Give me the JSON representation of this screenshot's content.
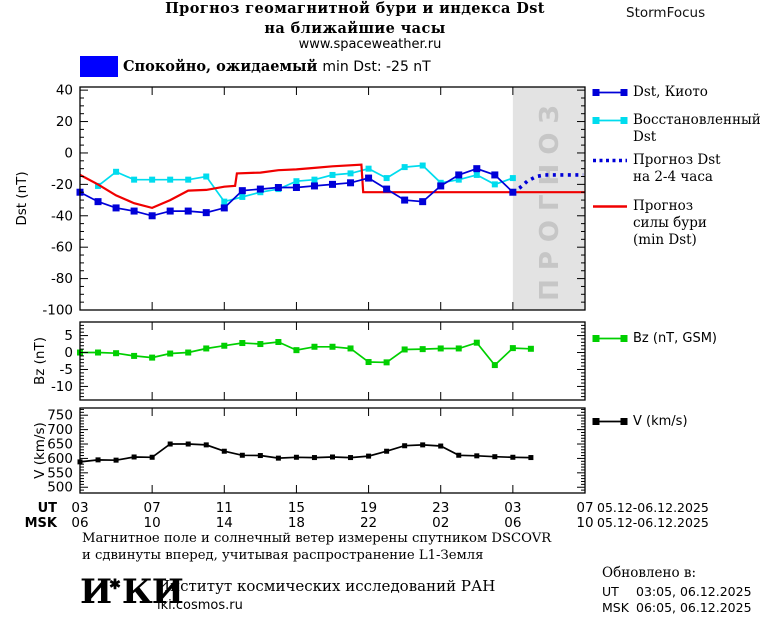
{
  "header": {
    "title_line1": "Прогноз геомагнитной бури и индекса Dst",
    "title_line2": "на ближайшие часы",
    "site": "www.spaceweather.ru",
    "brand": "StormFocus",
    "status_label_ru": "Спокойно, ожидаемый",
    "status_label_en": "min Dst: -25 nT",
    "status_color": "#0000ff"
  },
  "chart_data": [
    {
      "type": "line",
      "ylabel": "Dst (nT)",
      "ylim": [
        -100,
        42
      ],
      "yticks": [
        40,
        20,
        0,
        -20,
        -40,
        -60,
        -80,
        -100
      ],
      "xlim": [
        0,
        28
      ],
      "x_note": "hours after 03:00 UT 05.12.2025, points hourly",
      "xticks": {
        "positions": [
          0,
          4,
          8,
          12,
          16,
          20,
          24,
          28
        ],
        "ut": [
          "03",
          "07",
          "11",
          "15",
          "19",
          "23",
          "03",
          "07"
        ],
        "msk": [
          "06",
          "10",
          "14",
          "18",
          "22",
          "02",
          "06",
          "10"
        ],
        "row_labels": [
          "UT",
          "MSK"
        ],
        "ut_date": "05.12-06.12.2025",
        "msk_date": "05.12-06.12.2025"
      },
      "forecast_band": {
        "from": 24,
        "to": 28,
        "label": "ПРОГНОЗ",
        "fill": "#e3e3e3",
        "label_color": "#c6c6c6"
      },
      "series": [
        {
          "name": "Восстановленный Dst",
          "color": "#00dcee",
          "marker": "square",
          "marker_size": 6,
          "x_start": 1,
          "values": [
            -21,
            -12,
            -17,
            -17,
            -17,
            -17,
            -15,
            -31,
            -28,
            -25,
            -23,
            -18,
            -17,
            -14,
            -13,
            -10,
            -16,
            -9,
            -8,
            -19,
            -17,
            -14,
            -20,
            -16
          ]
        },
        {
          "name": "Прогноз силы бури (min Dst)",
          "color": "#f00000",
          "style": "line",
          "width": 2.2,
          "points": [
            [
              0,
              -14
            ],
            [
              1,
              -20
            ],
            [
              2,
              -27
            ],
            [
              3,
              -32
            ],
            [
              4,
              -35
            ],
            [
              5,
              -30
            ],
            [
              6,
              -24
            ],
            [
              7,
              -23.5
            ],
            [
              8,
              -21.5
            ],
            [
              8.6,
              -21
            ],
            [
              8.7,
              -13
            ],
            [
              10,
              -12.5
            ],
            [
              11,
              -11
            ],
            [
              12,
              -10.5
            ],
            [
              13,
              -9.5
            ],
            [
              14,
              -8.5
            ],
            [
              15.6,
              -7.5
            ],
            [
              15.7,
              -25
            ],
            [
              28,
              -25
            ]
          ]
        },
        {
          "name": "Dst, Киото",
          "color": "#0000d8",
          "marker": "square",
          "marker_size": 7,
          "x_start": 0,
          "values": [
            -25,
            -31,
            -35,
            -37,
            -40,
            -37,
            -37,
            -38,
            -35,
            -24,
            -23,
            -22,
            -22,
            -21,
            -20,
            -19,
            -16,
            -23,
            -30,
            -31,
            -21,
            -14,
            -10,
            -14,
            -25
          ]
        },
        {
          "name": "Прогноз Dst на 2-4 часа",
          "color": "#0000d8",
          "style": "dotted",
          "points": [
            [
              24,
              -25
            ],
            [
              24.4,
              -22
            ],
            [
              24.8,
              -18
            ],
            [
              25.3,
              -15
            ],
            [
              25.8,
              -14
            ],
            [
              27.9,
              -14
            ]
          ]
        }
      ]
    },
    {
      "type": "line",
      "ylabel": "Bz (nT)",
      "ylim": [
        -14,
        9
      ],
      "yticks": [
        5,
        0,
        -5,
        -10
      ],
      "xlim": [
        0,
        28
      ],
      "series": [
        {
          "name": "Bz (nT, GSM)",
          "color": "#00cf00",
          "marker": "square",
          "marker_size": 6,
          "x_start": 0,
          "values": [
            0,
            0,
            -0.2,
            -1,
            -1.5,
            -0.3,
            0,
            1.2,
            2,
            2.8,
            2.5,
            3.1,
            0.7,
            1.7,
            1.7,
            1.2,
            -2.8,
            -2.9,
            0.9,
            1,
            1.2,
            1.2,
            2.9,
            -3.7,
            1.3,
            1.1
          ]
        }
      ]
    },
    {
      "type": "line",
      "ylabel": "V (km/s)",
      "ylim": [
        480,
        775
      ],
      "yticks": [
        750,
        700,
        650,
        600,
        550,
        500
      ],
      "xlim": [
        0,
        28
      ],
      "series": [
        {
          "name": "V (km/s)",
          "color": "#000000",
          "marker": "square",
          "marker_size": 5,
          "x_start": 0,
          "values": [
            588,
            595,
            594,
            605,
            604,
            650,
            650,
            647,
            625,
            611,
            610,
            601,
            604,
            603,
            605,
            603,
            608,
            625,
            644,
            647,
            643,
            611,
            609,
            606,
            604,
            603
          ]
        }
      ]
    }
  ],
  "legend_dst": [
    {
      "swatch": "line-squares",
      "color": "#0000d8",
      "lines": [
        "Dst, Киото"
      ]
    },
    {
      "swatch": "line-squares",
      "color": "#00dcee",
      "lines": [
        "Восстановленный",
        "Dst"
      ]
    },
    {
      "swatch": "dotted",
      "color": "#0000d8",
      "lines": [
        "Прогноз Dst",
        "на 2-4 часа"
      ]
    },
    {
      "swatch": "line",
      "color": "#f00000",
      "lines": [
        "Прогноз",
        "силы бури",
        "(min Dst)"
      ]
    }
  ],
  "legend_bz": {
    "swatch": "line-squares",
    "color": "#00cf00",
    "lines": [
      "Bz (nT, GSM)"
    ]
  },
  "legend_v": {
    "swatch": "line-squares",
    "color": "#000000",
    "lines": [
      "V (km/s)"
    ]
  },
  "footer": {
    "note_line1": "Магнитное поле и солнечный ветер измерены спутником DSCOVR",
    "note_line2": "и сдвинуты вперед, учитывая распространение L1-Земля",
    "logo_left": "И",
    "logo_star": "✱",
    "logo_right": "КИ",
    "institute": "Институт космических исследований РАН",
    "site": "iki.cosmos.ru",
    "updated_header": "Обновлено в:",
    "updated_ut_label": "UT",
    "updated_ut_value": "03:05, 06.12.2025",
    "updated_msk_label": "MSK",
    "updated_msk_value": "06:05, 06.12.2025"
  }
}
